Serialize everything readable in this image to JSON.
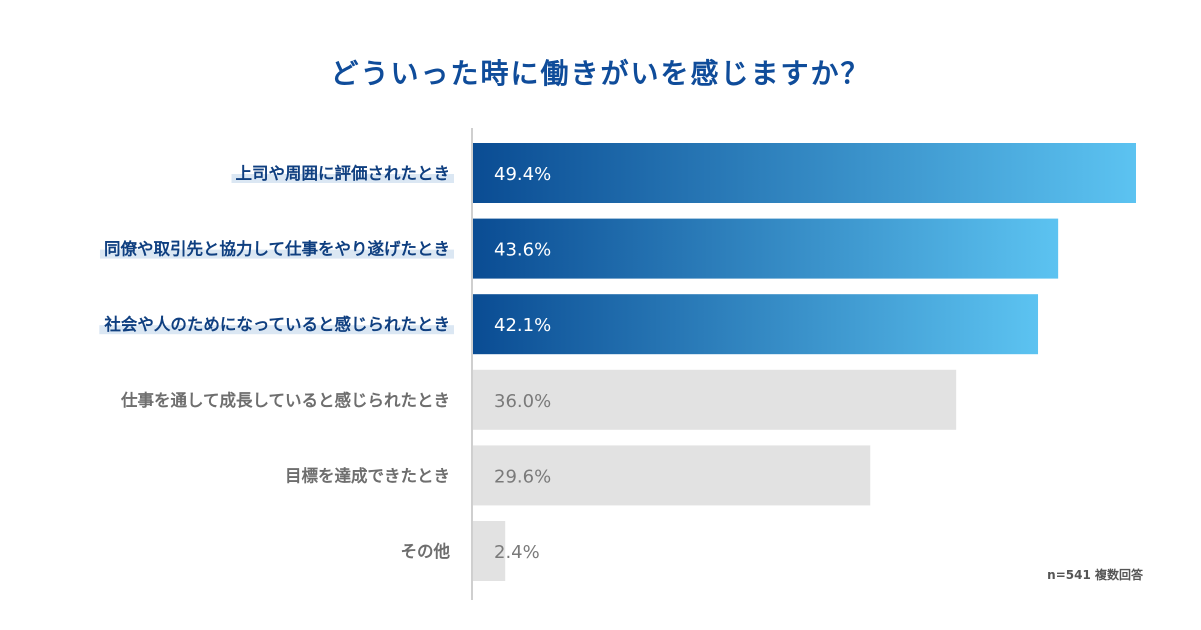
{
  "colors": {
    "title": "#0f4c9a",
    "highlight_text": "#0f3f80",
    "highlight_marker": "#dbe7f3",
    "plain_text": "#6e6e6e",
    "bar_gradient_start": "#0a4c93",
    "bar_gradient_end": "#5cc3f1",
    "bar_gray": "#e2e2e2",
    "value_white": "#ffffff",
    "value_gray": "#7a7a7a",
    "axis": "#cfcfcf",
    "note": "#555555"
  },
  "chart_data": {
    "type": "bar",
    "orientation": "horizontal",
    "title": "どういった時に働きがいを感じますか？",
    "categories": [
      "上司や周囲に評価されたとき",
      "同僚や取引先と協力して仕事をやり遂げたとき",
      "社会や人のためになっていると感じられたとき",
      "仕事を通して成長していると感じられたとき",
      "目標を達成できたとき",
      "その他"
    ],
    "values": [
      49.4,
      43.6,
      42.1,
      36.0,
      29.6,
      2.4
    ],
    "value_labels": [
      "49.4%",
      "43.6%",
      "42.1%",
      "36.0%",
      "29.6%",
      "2.4%"
    ],
    "highlighted": [
      true,
      true,
      true,
      false,
      false,
      false
    ],
    "unit": "%",
    "xlim": [
      0,
      50
    ],
    "xlabel": "",
    "ylabel": "",
    "grid": false
  },
  "note": "n=541 複数回答"
}
